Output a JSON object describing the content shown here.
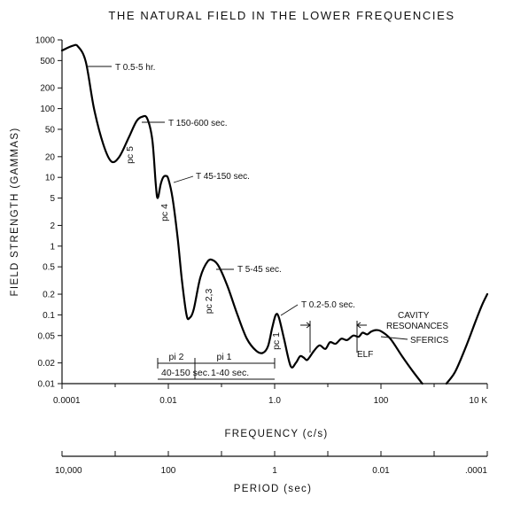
{
  "chart_data": {
    "type": "line",
    "title": "THE NATURAL FIELD IN THE LOWER FREQUENCIES",
    "xlabel": "FREQUENCY (c/s)",
    "ylabel": "FIELD STRENGTH (GAMMAS)",
    "x_scale": "log",
    "y_scale": "log",
    "xlim": [
      0.0001,
      10000
    ],
    "ylim": [
      0.01,
      1000
    ],
    "x_ticks": [
      {
        "value": 0.0001,
        "label": "0.0001"
      },
      {
        "value": 0.01,
        "label": "0.01"
      },
      {
        "value": 1,
        "label": "1.0"
      },
      {
        "value": 100,
        "label": "100"
      },
      {
        "value": 10000,
        "label": "10 K"
      }
    ],
    "y_ticks": [
      {
        "value": 1000,
        "label": "1000"
      },
      {
        "value": 500,
        "label": "500"
      },
      {
        "value": 200,
        "label": "200"
      },
      {
        "value": 100,
        "label": "100"
      },
      {
        "value": 50,
        "label": "50"
      },
      {
        "value": 20,
        "label": "20"
      },
      {
        "value": 10,
        "label": "10"
      },
      {
        "value": 5,
        "label": "5"
      },
      {
        "value": 2,
        "label": "2"
      },
      {
        "value": 1,
        "label": "1"
      },
      {
        "value": 0.5,
        "label": "0.5"
      },
      {
        "value": 0.2,
        "label": "0.2"
      },
      {
        "value": 0.1,
        "label": "0.1"
      },
      {
        "value": 0.05,
        "label": "0.05"
      },
      {
        "value": 0.02,
        "label": "0.02"
      },
      {
        "value": 0.01,
        "label": "0.01"
      }
    ],
    "period_axis": {
      "label": "PERIOD (sec)",
      "ticks": [
        {
          "frequency": 0.0001,
          "label": "10,000"
        },
        {
          "frequency": 0.01,
          "label": "100"
        },
        {
          "frequency": 1,
          "label": "1"
        },
        {
          "frequency": 100,
          "label": "0.01"
        },
        {
          "frequency": 10000,
          "label": ".0001"
        }
      ]
    },
    "series": [
      {
        "points": [
          [
            0.0001,
            700
          ],
          [
            0.000158,
            820
          ],
          [
            0.0002,
            800
          ],
          [
            0.00028,
            480
          ],
          [
            0.0004,
            100
          ],
          [
            0.0006,
            30
          ],
          [
            0.00085,
            17
          ],
          [
            0.0012,
            20
          ],
          [
            0.0018,
            38
          ],
          [
            0.0025,
            65
          ],
          [
            0.0032,
            76
          ],
          [
            0.004,
            72
          ],
          [
            0.005,
            35
          ],
          [
            0.0058,
            8
          ],
          [
            0.0063,
            5
          ],
          [
            0.0072,
            8
          ],
          [
            0.008,
            10
          ],
          [
            0.009,
            10.5
          ],
          [
            0.01,
            9.5
          ],
          [
            0.012,
            5
          ],
          [
            0.015,
            1.3
          ],
          [
            0.018,
            0.32
          ],
          [
            0.022,
            0.1
          ],
          [
            0.025,
            0.09
          ],
          [
            0.03,
            0.12
          ],
          [
            0.04,
            0.35
          ],
          [
            0.055,
            0.6
          ],
          [
            0.07,
            0.62
          ],
          [
            0.09,
            0.5
          ],
          [
            0.13,
            0.26
          ],
          [
            0.2,
            0.1
          ],
          [
            0.3,
            0.045
          ],
          [
            0.45,
            0.03
          ],
          [
            0.6,
            0.028
          ],
          [
            0.75,
            0.035
          ],
          [
            0.9,
            0.065
          ],
          [
            1.05,
            0.1
          ],
          [
            1.2,
            0.092
          ],
          [
            1.5,
            0.045
          ],
          [
            2.0,
            0.018
          ],
          [
            2.5,
            0.02
          ],
          [
            3.0,
            0.025
          ],
          [
            3.5,
            0.024
          ],
          [
            4.0,
            0.022
          ],
          [
            4.5,
            0.024
          ],
          [
            5.5,
            0.03
          ],
          [
            7,
            0.036
          ],
          [
            9,
            0.032
          ],
          [
            11,
            0.04
          ],
          [
            14,
            0.038
          ],
          [
            18,
            0.045
          ],
          [
            23,
            0.043
          ],
          [
            30,
            0.05
          ],
          [
            38,
            0.048
          ],
          [
            45,
            0.055
          ],
          [
            55,
            0.052
          ],
          [
            65,
            0.057
          ],
          [
            80,
            0.06
          ],
          [
            100,
            0.058
          ],
          [
            150,
            0.045
          ],
          [
            250,
            0.025
          ],
          [
            400,
            0.015
          ],
          [
            600,
            0.01
          ]
        ]
      },
      {
        "points": [
          [
            1700,
            0.01
          ],
          [
            2500,
            0.015
          ],
          [
            4000,
            0.035
          ],
          [
            6000,
            0.08
          ],
          [
            8000,
            0.14
          ],
          [
            10000,
            0.2
          ]
        ]
      }
    ],
    "annotations": [
      {
        "text": "T 0.5-5 hr."
      },
      {
        "text": "T 150-600 sec."
      },
      {
        "text": "T 45-150 sec."
      },
      {
        "text": "T 5-45 sec."
      },
      {
        "text": "T 0.2-5.0 sec."
      },
      {
        "text": "CAVITY"
      },
      {
        "text": "RESONANCES"
      },
      {
        "text": "SFERICS"
      },
      {
        "text": "ELF"
      },
      {
        "text": "pc 5"
      },
      {
        "text": "pc 4"
      },
      {
        "text": "pc 2,3"
      },
      {
        "text": "pc 1"
      },
      {
        "text": "pi 2"
      },
      {
        "text": "pi 1"
      },
      {
        "text": "40-150 sec."
      },
      {
        "text": "1-40 sec."
      }
    ]
  }
}
